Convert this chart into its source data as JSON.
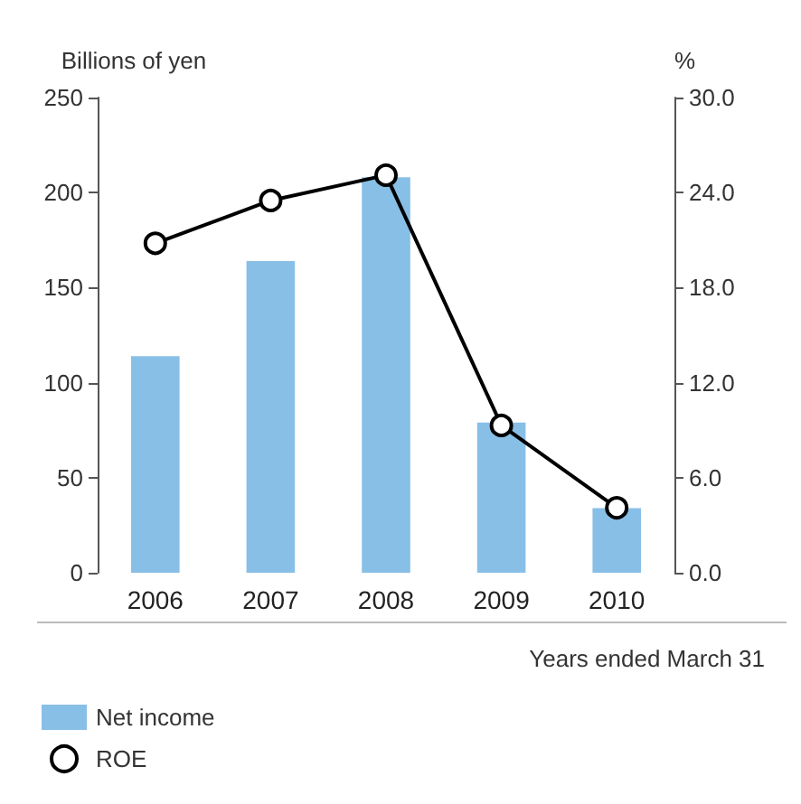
{
  "chart_data": {
    "type": "bar",
    "ylabel": "Billions of yen",
    "y2label": "%",
    "categories": [
      "2006",
      "2007",
      "2008",
      "2009",
      "2010"
    ],
    "series": [
      {
        "name": "Net income",
        "color": "#88bfe6",
        "values": [
          114,
          164,
          208,
          79,
          34
        ]
      },
      {
        "name": "ROE",
        "type": "line",
        "axis": "y2",
        "color": "#000000",
        "marker": "circle",
        "values": [
          20.8,
          23.5,
          25.1,
          9.3,
          4.1
        ]
      }
    ],
    "ylim": [
      0,
      250
    ],
    "yticks": [
      0,
      50,
      100,
      150,
      200,
      250
    ],
    "y2lim": [
      0,
      30
    ],
    "y2ticks": [
      {
        "value": 0,
        "label": "0.0"
      },
      {
        "value": 6,
        "label": "6.0"
      },
      {
        "value": 12,
        "label": "12.0"
      },
      {
        "value": 18,
        "label": "18.0"
      },
      {
        "value": 24,
        "label": "24.0"
      },
      {
        "value": 30,
        "label": "30.0"
      }
    ],
    "annotations": [
      "Years ended March 31"
    ],
    "legend": "bottom left",
    "grid": false
  }
}
